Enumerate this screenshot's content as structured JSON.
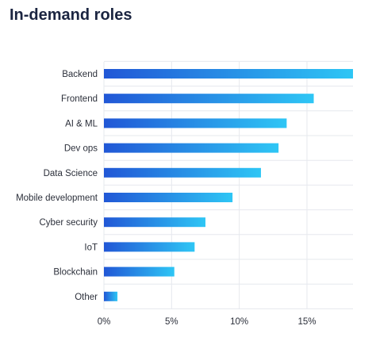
{
  "chart_data": {
    "type": "bar",
    "orientation": "horizontal",
    "title": "In-demand roles",
    "categories": [
      "Backend",
      "Frontend",
      "AI & ML",
      "Dev ops",
      "Data Science",
      "Mobile development",
      "Cyber security",
      "IoT",
      "Blockchain",
      "Other"
    ],
    "values": [
      18.4,
      15.5,
      13.5,
      12.9,
      11.6,
      9.5,
      7.5,
      6.7,
      5.2,
      1.0
    ],
    "xlim": [
      0,
      18.4
    ],
    "xticks": [
      0,
      5,
      10,
      15
    ],
    "xtick_labels": [
      "0%",
      "5%",
      "10%",
      "15%"
    ],
    "grid": true,
    "colors": {
      "bar_start": "#2157d6",
      "bar_end": "#2ec6f5",
      "grid": "#e6e8ee",
      "title": "#1b2541"
    }
  }
}
